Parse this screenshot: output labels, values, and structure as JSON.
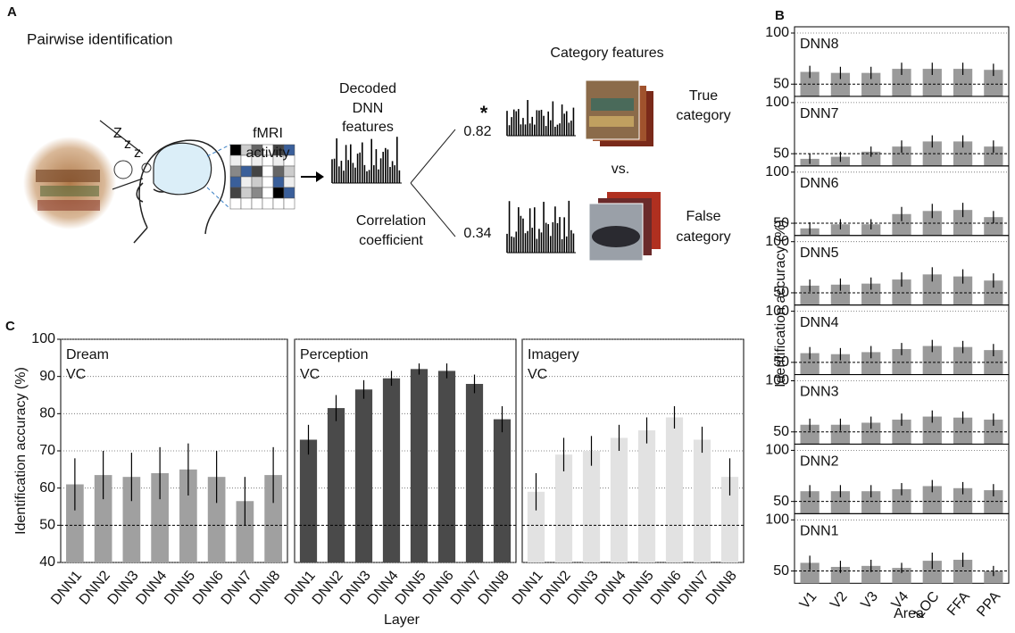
{
  "figure": {
    "panel_labels": [
      "A",
      "B",
      "C"
    ]
  },
  "diagram": {
    "title": "Pairwise identification",
    "sleep_letters": [
      "Z",
      "z",
      "z"
    ],
    "fmri_label": [
      "fMRI",
      "activity"
    ],
    "decoded_label": [
      "Decoded",
      "DNN",
      "features"
    ],
    "correlation_label": [
      "Correlation",
      "coefficient"
    ],
    "category_features": "Category features",
    "significance": "*",
    "true_score": 0.82,
    "false_score": 0.34,
    "true_label": [
      "True",
      "category"
    ],
    "vs": "vs.",
    "false_label": [
      "False",
      "category"
    ]
  },
  "panel_b": {
    "ylabel": "Identification accuracy (%)"
  },
  "panel_c": {
    "ylabel": "Identification accuracy (%)",
    "xlabel": "Layer"
  },
  "chart_data": [
    {
      "type": "bar",
      "title": "Dream",
      "subtitle": "VC",
      "categories": [
        "DNN1",
        "DNN2",
        "DNN3",
        "DNN4",
        "DNN5",
        "DNN6",
        "DNN7",
        "DNN8"
      ],
      "values": [
        61,
        63.5,
        63,
        64,
        65,
        63,
        56.5,
        63.5
      ],
      "errors": [
        7,
        6.5,
        6.5,
        7,
        7,
        7,
        6.5,
        7.5
      ],
      "color": "#a0a0a0",
      "ylim": [
        40,
        100
      ],
      "yticks": [
        40,
        50,
        60,
        70,
        80,
        90,
        100
      ],
      "chance": 50,
      "grid": true
    },
    {
      "type": "bar",
      "title": "Perception",
      "subtitle": "VC",
      "categories": [
        "DNN1",
        "DNN2",
        "DNN3",
        "DNN4",
        "DNN5",
        "DNN6",
        "DNN7",
        "DNN8"
      ],
      "values": [
        73,
        81.5,
        86.5,
        89.5,
        92,
        91.5,
        88,
        78.5
      ],
      "errors": [
        4,
        3.5,
        2.5,
        2,
        1.5,
        2,
        2.5,
        3.5
      ],
      "color": "#4a4a4a",
      "ylim": [
        40,
        100
      ],
      "chance": 50,
      "grid": true
    },
    {
      "type": "bar",
      "title": "Imagery",
      "subtitle": "VC",
      "categories": [
        "DNN1",
        "DNN2",
        "DNN3",
        "DNN4",
        "DNN5",
        "DNN6",
        "DNN7",
        "DNN8"
      ],
      "values": [
        59,
        69,
        70,
        73.5,
        75.5,
        79,
        73,
        63
      ],
      "errors": [
        5,
        4.5,
        4,
        3.5,
        3.5,
        3,
        3.5,
        5
      ],
      "color": "#e2e2e2",
      "ylim": [
        40,
        100
      ],
      "chance": 50,
      "grid": true
    },
    {
      "type": "bar",
      "title": "DNN8",
      "values": [
        62,
        61,
        61,
        65,
        65,
        65,
        64
      ],
      "errors": [
        6,
        6,
        6,
        6,
        6,
        6,
        6
      ],
      "color": "#9a9a9a",
      "ylim": [
        38,
        100
      ],
      "yticks": [
        50,
        100
      ],
      "chance": 50,
      "grid": true
    },
    {
      "type": "bar",
      "title": "DNN7",
      "values": [
        45,
        47,
        52,
        57,
        62,
        62,
        57
      ],
      "errors": [
        5,
        5,
        5,
        6,
        6,
        6,
        6
      ],
      "color": "#9a9a9a",
      "ylim": [
        38,
        100
      ],
      "yticks": [
        50,
        100
      ],
      "chance": 50,
      "grid": true
    },
    {
      "type": "bar",
      "title": "DNN6",
      "values": [
        45,
        49,
        49,
        59,
        62,
        63,
        56
      ],
      "errors": [
        6,
        5,
        5,
        7,
        7,
        7,
        6
      ],
      "color": "#9a9a9a",
      "ylim": [
        38,
        100
      ],
      "yticks": [
        50,
        100
      ],
      "chance": 50,
      "grid": true
    },
    {
      "type": "bar",
      "title": "DNN5",
      "values": [
        57,
        58,
        59,
        63,
        68,
        66,
        62
      ],
      "errors": [
        6,
        6,
        6,
        7,
        7,
        7,
        7
      ],
      "color": "#9a9a9a",
      "ylim": [
        38,
        100
      ],
      "yticks": [
        50,
        100
      ],
      "chance": 50,
      "grid": true
    },
    {
      "type": "bar",
      "title": "DNN4",
      "values": [
        59,
        58,
        60,
        63,
        66,
        65,
        62
      ],
      "errors": [
        6,
        6,
        6,
        6,
        6,
        6,
        6
      ],
      "color": "#9a9a9a",
      "ylim": [
        38,
        100
      ],
      "yticks": [
        50,
        100
      ],
      "chance": 50,
      "grid": true
    },
    {
      "type": "bar",
      "title": "DNN3",
      "values": [
        57,
        57,
        59,
        62,
        65,
        64,
        62
      ],
      "errors": [
        6,
        6,
        6,
        6,
        6,
        6,
        6
      ],
      "color": "#9a9a9a",
      "ylim": [
        38,
        100
      ],
      "yticks": [
        50,
        100
      ],
      "chance": 50,
      "grid": true
    },
    {
      "type": "bar",
      "title": "DNN2",
      "values": [
        60,
        60,
        60,
        62,
        65,
        63,
        61
      ],
      "errors": [
        6,
        6,
        6,
        6,
        6,
        6,
        6
      ],
      "color": "#9a9a9a",
      "ylim": [
        38,
        100
      ],
      "yticks": [
        50,
        100
      ],
      "chance": 50,
      "grid": true
    },
    {
      "type": "bar",
      "title": "DNN1",
      "categories": [
        "V1",
        "V2",
        "V3",
        "V4",
        "LOC",
        "FFA",
        "PPA"
      ],
      "xlabel": "Area",
      "values": [
        58,
        54,
        55,
        53,
        60,
        61,
        50
      ],
      "errors": [
        7,
        6,
        6,
        5,
        8,
        7,
        5
      ],
      "color": "#9a9a9a",
      "ylim": [
        38,
        100
      ],
      "yticks": [
        50,
        100
      ],
      "chance": 50,
      "grid": true
    }
  ]
}
